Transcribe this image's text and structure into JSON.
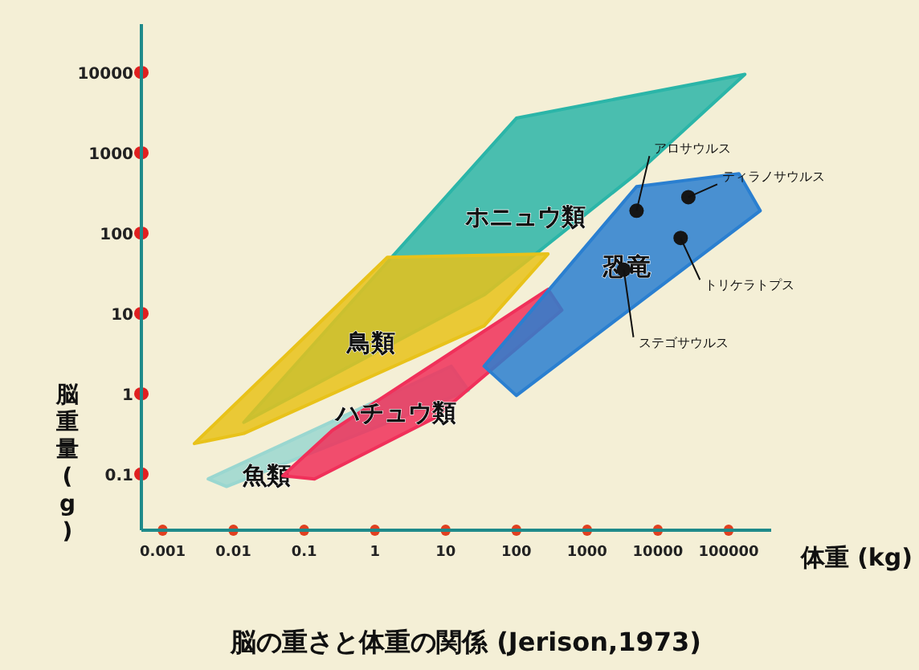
{
  "chart_data": {
    "type": "scatter",
    "title": "脳の重さと体重の関係 (Jerison,1973)",
    "xlabel": "体重 (kg)",
    "ylabel": "脳重量 (g)",
    "log": "xy",
    "grid": false,
    "xlim": [
      0.0005,
      400000
    ],
    "ylim": [
      0.02,
      40000
    ],
    "xticks": [
      0.001,
      0.01,
      0.1,
      1,
      10,
      100,
      1000,
      10000,
      100000
    ],
    "yticks": [
      0.1,
      1,
      10,
      100,
      1000,
      10000
    ],
    "series": [
      {
        "name": "ホニュウ類",
        "type": "area",
        "color": "#2bb5a8",
        "x": [
          0.014,
          100,
          170000,
          5000,
          35
        ],
        "values": [
          0.44,
          2700,
          9500,
          550,
          17
        ]
      },
      {
        "name": "鳥類",
        "type": "area",
        "color": "#e8c21a",
        "x": [
          0.0028,
          1.5,
          280,
          35,
          0.014
        ],
        "values": [
          0.24,
          50,
          55,
          7,
          0.32
        ]
      },
      {
        "name": "魚類",
        "type": "area",
        "color": "#9ad7d0",
        "x": [
          0.0044,
          12,
          21,
          0.008
        ],
        "values": [
          0.087,
          2.2,
          1.1,
          0.07
        ]
      },
      {
        "name": "ハチュウ類",
        "type": "area",
        "color": "#f0305a",
        "x": [
          0.05,
          0.25,
          280,
          440,
          7,
          0.14
        ],
        "values": [
          0.095,
          0.35,
          20,
          11,
          0.5,
          0.087
        ]
      },
      {
        "name": "恐竜",
        "type": "area",
        "color": "#2a7fd0",
        "x": [
          35,
          5000,
          140000,
          280000,
          100
        ],
        "values": [
          2.2,
          380,
          550,
          190,
          0.95
        ]
      },
      {
        "type": "scatter",
        "marker": "circle",
        "color": "#151515",
        "x": [
          5000,
          27000,
          21000,
          3300
        ],
        "values": [
          190,
          280,
          87,
          35
        ]
      }
    ],
    "annotations": [
      {
        "text": "アロサウルス",
        "x": 5000,
        "y": 190
      },
      {
        "text": "ティラノサウルス",
        "x": 27000,
        "y": 280
      },
      {
        "text": "トリケラトプス",
        "x": 21000,
        "y": 87
      },
      {
        "text": "ステゴサウルス",
        "x": 3300,
        "y": 35
      }
    ]
  }
}
